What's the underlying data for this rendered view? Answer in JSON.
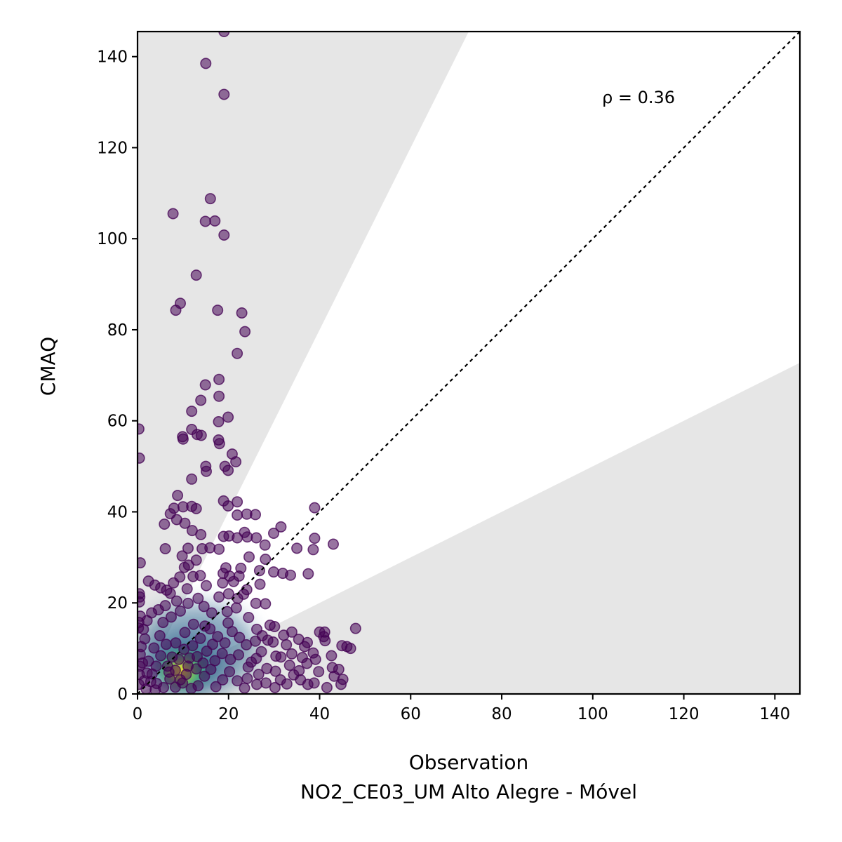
{
  "chart_data": {
    "type": "scatter",
    "xlabel": "Observation",
    "xlabel2": "NO2_CE03_UM Alto Alegre - Móvel",
    "ylabel": "CMAQ",
    "xlim": [
      0,
      145.5
    ],
    "ylim": [
      0,
      145.5
    ],
    "xticks": [
      "0",
      "20",
      "40",
      "60",
      "80",
      "100",
      "120",
      "140"
    ],
    "yticks": [
      "0",
      "20",
      "40",
      "60",
      "80",
      "100",
      "120",
      "140"
    ],
    "annotation": "ρ = 0.36",
    "identity_line": true,
    "shaded_band_slopes": [
      0.5,
      2.0
    ],
    "colors": {
      "band": "#e6e6e6",
      "low_density": "#440154",
      "mid_density": "#31688e",
      "high_density": "#35b779",
      "peak_density": "#fde725"
    },
    "points": [
      [
        19,
        145.5
      ],
      [
        15,
        138.5
      ],
      [
        19,
        131.7
      ],
      [
        16,
        108.8
      ],
      [
        7.8,
        105.5
      ],
      [
        14.9,
        103.8
      ],
      [
        17,
        103.9
      ],
      [
        19,
        100.8
      ],
      [
        12.9,
        92
      ],
      [
        9.4,
        85.8
      ],
      [
        8.4,
        84.3
      ],
      [
        17.6,
        84.3
      ],
      [
        22.9,
        83.7
      ],
      [
        23.6,
        79.6
      ],
      [
        21.9,
        74.8
      ],
      [
        17.9,
        69.1
      ],
      [
        14.9,
        67.9
      ],
      [
        13.9,
        64.5
      ],
      [
        17.9,
        65.4
      ],
      [
        11.9,
        62.1
      ],
      [
        19.9,
        60.8
      ],
      [
        17.8,
        59.8
      ],
      [
        0.3,
        58.2
      ],
      [
        11.9,
        58.1
      ],
      [
        13.1,
        57
      ],
      [
        14,
        56.8
      ],
      [
        9.9,
        56.5
      ],
      [
        10,
        56
      ],
      [
        17.8,
        55.8
      ],
      [
        18,
        55
      ],
      [
        0.4,
        51.8
      ],
      [
        20.8,
        52.7
      ],
      [
        21.6,
        51
      ],
      [
        19.2,
        50
      ],
      [
        15,
        50
      ],
      [
        15.1,
        48.9
      ],
      [
        19.9,
        49.1
      ],
      [
        11.9,
        47.2
      ],
      [
        18.9,
        42.4
      ],
      [
        21.9,
        42.2
      ],
      [
        19.9,
        41.3
      ],
      [
        11.9,
        41.2
      ],
      [
        12.9,
        40.7
      ],
      [
        8,
        40.8
      ],
      [
        7.2,
        39.6
      ],
      [
        8.8,
        43.6
      ],
      [
        10,
        41.1
      ],
      [
        24,
        39.5
      ],
      [
        25.9,
        39.4
      ],
      [
        21.9,
        39.3
      ],
      [
        38.9,
        40.9
      ],
      [
        5.9,
        37.3
      ],
      [
        8.6,
        38.3
      ],
      [
        10.4,
        37.5
      ],
      [
        12,
        35.9
      ],
      [
        13.9,
        35
      ],
      [
        18.9,
        34.6
      ],
      [
        20.1,
        34.7
      ],
      [
        21.9,
        34.3
      ],
      [
        24.1,
        34.5
      ],
      [
        26.1,
        34.3
      ],
      [
        23.5,
        35.5
      ],
      [
        31.5,
        36.7
      ],
      [
        29.9,
        35.3
      ],
      [
        43,
        32.9
      ],
      [
        38.9,
        34.2
      ],
      [
        35,
        32
      ],
      [
        38.6,
        31.7
      ],
      [
        6.1,
        31.9
      ],
      [
        11.1,
        32
      ],
      [
        15.9,
        32.1
      ],
      [
        17.9,
        31.8
      ],
      [
        24.5,
        30.1
      ],
      [
        28.1,
        29.6
      ],
      [
        28,
        32.7
      ],
      [
        0.6,
        28.8
      ],
      [
        10.3,
        27.8
      ],
      [
        19.4,
        27.7
      ],
      [
        22.7,
        27.6
      ],
      [
        26.8,
        27.1
      ],
      [
        29.9,
        26.8
      ],
      [
        31.9,
        26.5
      ],
      [
        33.6,
        26.1
      ],
      [
        37.5,
        26.4
      ],
      [
        18.8,
        26.5
      ],
      [
        20.2,
        25.9
      ],
      [
        22.3,
        25.9
      ],
      [
        2.4,
        24.8
      ],
      [
        3.8,
        23.9
      ],
      [
        5.1,
        23.3
      ],
      [
        6.4,
        22.8
      ],
      [
        0.4,
        22
      ],
      [
        0.5,
        21.3
      ],
      [
        0.4,
        20.2
      ],
      [
        0.3,
        15.7
      ],
      [
        0.2,
        14.5
      ],
      [
        0.6,
        17.1
      ],
      [
        24,
        22.9
      ],
      [
        26.9,
        24.1
      ],
      [
        20,
        22
      ],
      [
        22,
        21
      ],
      [
        26,
        19.9
      ],
      [
        28.1,
        19.8
      ],
      [
        29.1,
        15.1
      ],
      [
        30.1,
        14.8
      ],
      [
        32.1,
        12.9
      ],
      [
        33.9,
        13.6
      ],
      [
        35.4,
        12
      ],
      [
        37.3,
        11.3
      ],
      [
        40,
        13.6
      ],
      [
        41.1,
        13.6
      ],
      [
        40.9,
        12.6
      ],
      [
        41.2,
        11.7
      ],
      [
        44.9,
        10.6
      ],
      [
        46,
        10.4
      ],
      [
        47.9,
        14.4
      ],
      [
        46.8,
        10
      ],
      [
        38.6,
        9
      ],
      [
        39.1,
        7.6
      ],
      [
        42.8,
        5.8
      ],
      [
        44.2,
        5.4
      ],
      [
        43.2,
        3.9
      ],
      [
        44.7,
        2.1
      ],
      [
        45.1,
        3.2
      ],
      [
        41.6,
        1.4
      ],
      [
        38.8,
        2.4
      ],
      [
        37.4,
        2.1
      ],
      [
        35.8,
        3.1
      ],
      [
        35.5,
        5.1
      ],
      [
        37.2,
        6.7
      ],
      [
        36.2,
        8
      ],
      [
        33.9,
        8.8
      ],
      [
        32.7,
        10.8
      ],
      [
        30.4,
        8.3
      ],
      [
        30.3,
        5
      ],
      [
        31.4,
        3.1
      ],
      [
        28.2,
        2.4
      ],
      [
        26.6,
        4.3
      ],
      [
        24.1,
        3.4
      ],
      [
        25,
        7
      ],
      [
        27.2,
        9.3
      ],
      [
        28.6,
        11.8
      ],
      [
        26.2,
        14.2
      ],
      [
        24.4,
        16.8
      ],
      [
        21.7,
        18.9
      ],
      [
        23.3,
        21.9
      ],
      [
        21.1,
        24.7
      ],
      [
        18.7,
        24.4
      ],
      [
        19.7,
        18.1
      ],
      [
        17.9,
        21.3
      ],
      [
        16.3,
        17.8
      ],
      [
        15.1,
        23.8
      ],
      [
        13.8,
        26
      ],
      [
        12.2,
        25.8
      ],
      [
        11.2,
        28.3
      ],
      [
        12.9,
        29.4
      ],
      [
        14.2,
        31.9
      ],
      [
        9.8,
        30.3
      ],
      [
        10.9,
        23.1
      ],
      [
        9.3,
        25.7
      ],
      [
        7.9,
        24.4
      ],
      [
        7.2,
        22.1
      ],
      [
        8.6,
        20.4
      ],
      [
        6.1,
        19.4
      ],
      [
        4.6,
        18.5
      ],
      [
        3.1,
        17.8
      ],
      [
        2.1,
        16.1
      ],
      [
        1.3,
        14.2
      ],
      [
        1.6,
        12.1
      ],
      [
        0.8,
        10.4
      ],
      [
        0.6,
        8.7
      ],
      [
        0.5,
        6.1
      ],
      [
        0.4,
        4.3
      ],
      [
        0.3,
        2.1
      ],
      [
        1.9,
        1.1
      ],
      [
        3.9,
        0.9
      ],
      [
        5.7,
        1.4
      ],
      [
        3.2,
        4.4
      ],
      [
        2.4,
        7.2
      ],
      [
        3.6,
        10.1
      ],
      [
        4.9,
        12.8
      ],
      [
        5.6,
        15.7
      ],
      [
        7.4,
        16.9
      ],
      [
        9.4,
        18.2
      ],
      [
        11.1,
        19.9
      ],
      [
        13.3,
        21
      ],
      [
        14.6,
        19.2
      ],
      [
        15.9,
        14.3
      ],
      [
        17.6,
        12.6
      ],
      [
        19.2,
        11.2
      ],
      [
        20.8,
        13.7
      ],
      [
        22.4,
        12.4
      ],
      [
        23.9,
        10.8
      ],
      [
        25.9,
        11.6
      ],
      [
        27.4,
        12.8
      ],
      [
        29.8,
        11.4
      ],
      [
        31.5,
        8.1
      ],
      [
        33.4,
        6.3
      ],
      [
        34.3,
        4.2
      ],
      [
        32.8,
        2.2
      ],
      [
        30.2,
        1.4
      ],
      [
        28.4,
        5.6
      ],
      [
        26.2,
        2.1
      ],
      [
        23.5,
        1.3
      ],
      [
        21.9,
        2.9
      ],
      [
        20.2,
        4.9
      ],
      [
        18.7,
        3.1
      ],
      [
        17.2,
        1.6
      ],
      [
        16.1,
        5.4
      ],
      [
        14.7,
        3.9
      ],
      [
        13.3,
        1.8
      ],
      [
        11.8,
        1.2
      ],
      [
        9.9,
        2.4
      ],
      [
        8.3,
        1.5
      ],
      [
        7.1,
        3.3
      ],
      [
        6.6,
        6.1
      ],
      [
        5.1,
        8.4
      ],
      [
        4.1,
        6.1
      ],
      [
        2.9,
        2.7
      ],
      [
        8.4,
        11.2
      ],
      [
        10.4,
        13.5
      ],
      [
        12.3,
        15.3
      ],
      [
        13.8,
        12.2
      ],
      [
        15.2,
        9.4
      ],
      [
        17,
        7.3
      ],
      [
        18.6,
        8.9
      ],
      [
        20.4,
        7.6
      ],
      [
        22.2,
        8.6
      ],
      [
        24.3,
        5.9
      ],
      [
        26.1,
        7.8
      ],
      [
        11.4,
        7.9
      ],
      [
        9.1,
        7.6
      ],
      [
        12.9,
        5.5
      ],
      [
        10.7,
        4.3
      ],
      [
        8.3,
        5.2
      ],
      [
        7.6,
        8.1
      ],
      [
        6.3,
        10.9
      ],
      [
        14.4,
        6.8
      ],
      [
        16.5,
        10.9
      ],
      [
        19.9,
        15.6
      ],
      [
        10.2,
        9.8
      ],
      [
        12.1,
        10.6
      ],
      [
        6.9,
        4.8
      ],
      [
        9.4,
        3.1
      ],
      [
        11.1,
        6.1
      ],
      [
        13.1,
        8.2
      ],
      [
        14.8,
        14.9
      ],
      [
        4.2,
        2.3
      ],
      [
        2.1,
        4.6
      ],
      [
        1.1,
        6.8
      ],
      [
        1.5,
        2.9
      ],
      [
        36.7,
        10.4
      ],
      [
        39.8,
        4.9
      ],
      [
        42.6,
        8.4
      ]
    ]
  }
}
